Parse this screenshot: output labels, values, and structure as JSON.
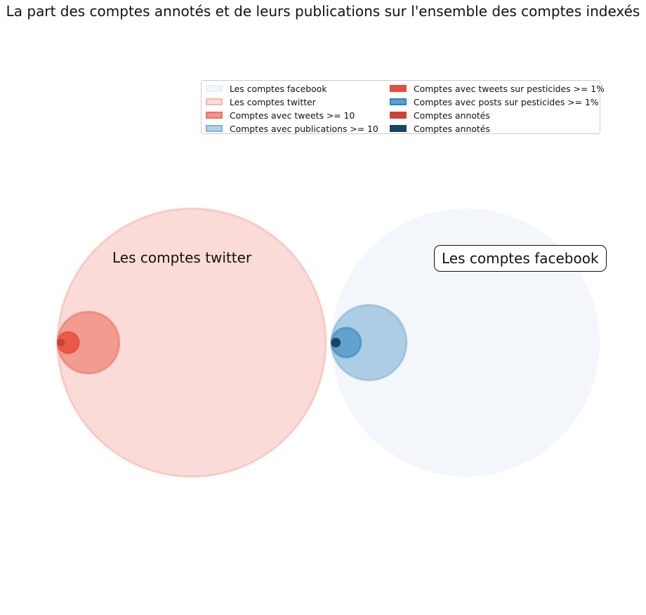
{
  "chart_data": {
    "type": "bubble",
    "title": "La part des comptes annotés et de leurs publications sur l'ensemble des comptes indexés",
    "legend_position": "upper-right",
    "grid": false,
    "group_labels": {
      "twitter": "Les comptes twitter",
      "facebook": "Les comptes facebook"
    },
    "series": [
      {
        "name": "Les comptes facebook",
        "group": "facebook",
        "relative_size": 1.0,
        "color": "#dce6f1"
      },
      {
        "name": "Les comptes twitter",
        "group": "twitter",
        "relative_size": 1.0,
        "color": "#f5b7b1"
      },
      {
        "name": "Comptes avec tweets >= 10",
        "group": "twitter",
        "relative_size": 0.23,
        "color": "#ec7063"
      },
      {
        "name": "Comptes avec publications >= 10",
        "group": "facebook",
        "relative_size": 0.28,
        "color": "#7fb3d5"
      },
      {
        "name": "Comptes avec tweets sur pesticides >= 1%",
        "group": "twitter",
        "relative_size": 0.08,
        "color": "#e74c3c"
      },
      {
        "name": "Comptes avec posts sur pesticides >= 1%",
        "group": "facebook",
        "relative_size": 0.11,
        "color": "#2e86c1"
      },
      {
        "name": "Comptes annotés",
        "group": "twitter",
        "relative_size": 0.025,
        "color": "#c0392b"
      },
      {
        "name": "Comptes annotés",
        "group": "facebook",
        "relative_size": 0.033,
        "color": "#1a4560"
      }
    ]
  }
}
